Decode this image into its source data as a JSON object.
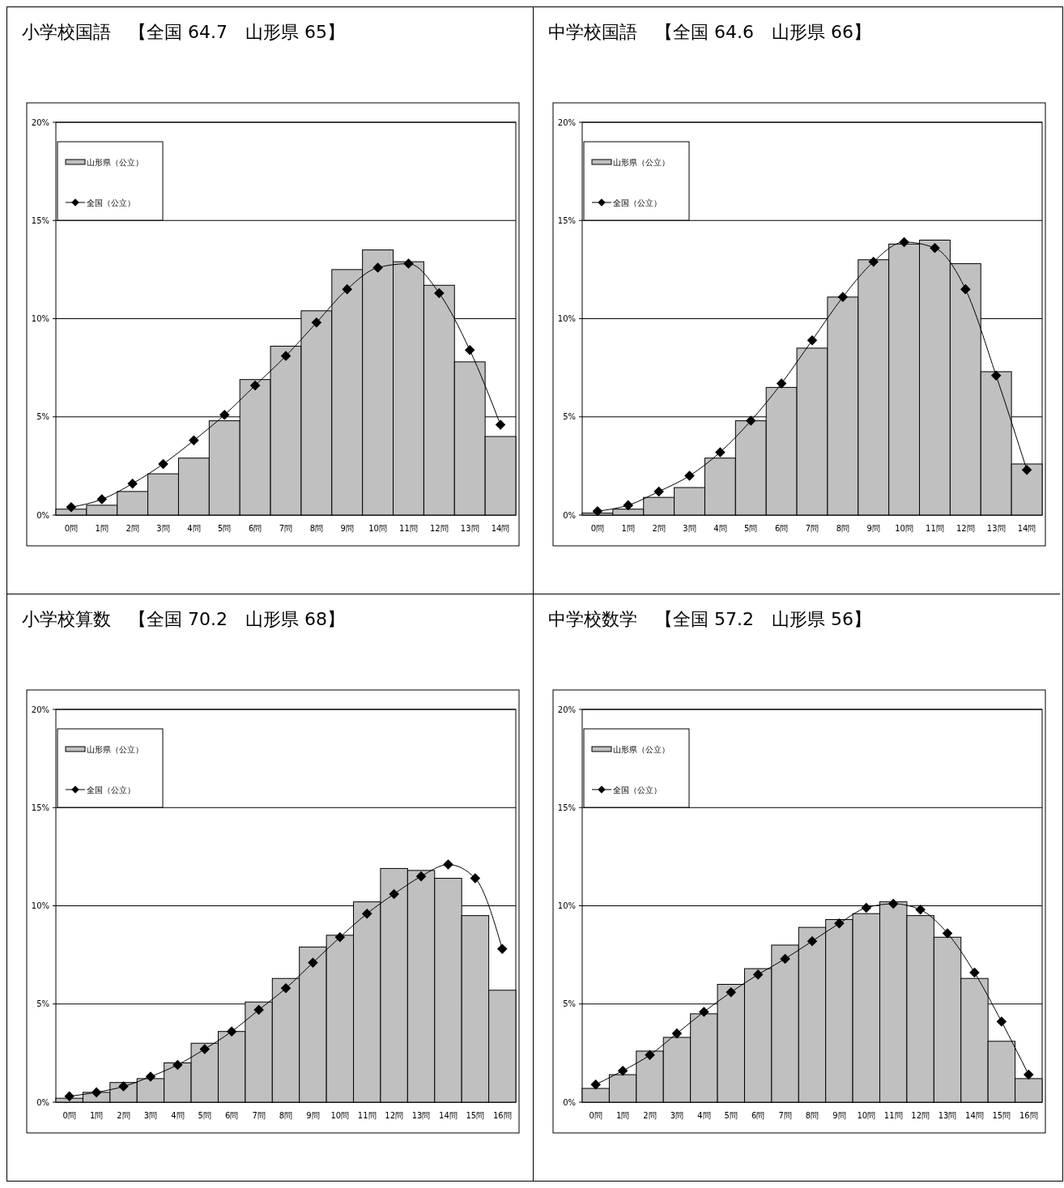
{
  "chart_data": [
    {
      "type": "bar",
      "title": "小学校国語　【全国 64.7　山形県 65】",
      "categories": [
        "0問",
        "1問",
        "2問",
        "3問",
        "4問",
        "5問",
        "6問",
        "7問",
        "8問",
        "9問",
        "10問",
        "11問",
        "12問",
        "13問",
        "14問"
      ],
      "series": [
        {
          "name": "山形県（公立）",
          "color": "#c0c0c0",
          "values": [
            0.3,
            0.5,
            1.2,
            2.1,
            2.9,
            4.8,
            6.9,
            8.6,
            10.4,
            12.5,
            13.5,
            12.9,
            11.7,
            7.8,
            4.0
          ]
        },
        {
          "name": "全国（公立）",
          "type": "line",
          "color": "#000000",
          "marker": "diamond",
          "values": [
            0.4,
            0.8,
            1.6,
            2.6,
            3.8,
            5.1,
            6.6,
            8.1,
            9.8,
            11.5,
            12.6,
            12.8,
            11.3,
            8.4,
            4.6
          ]
        }
      ],
      "ylim": [
        0,
        20
      ],
      "yticks": [
        {
          "value": 0,
          "label": "0%"
        },
        {
          "value": 5,
          "label": "5%"
        },
        {
          "value": 10,
          "label": "10%"
        },
        {
          "value": 15,
          "label": "15%"
        },
        {
          "value": 20,
          "label": "20%"
        }
      ],
      "grid": "y",
      "legend": "top left"
    },
    {
      "type": "bar",
      "title": "中学校国語　【全国 64.6　山形県 66】",
      "categories": [
        "0問",
        "1問",
        "2問",
        "3問",
        "4問",
        "5問",
        "6問",
        "7問",
        "8問",
        "9問",
        "10問",
        "11問",
        "12問",
        "13問",
        "14問"
      ],
      "series": [
        {
          "name": "山形県（公立）",
          "color": "#c0c0c0",
          "values": [
            0.1,
            0.3,
            0.9,
            1.4,
            2.9,
            4.8,
            6.5,
            8.5,
            11.1,
            13.0,
            13.8,
            14.0,
            12.8,
            7.3,
            2.6
          ]
        },
        {
          "name": "全国（公立）",
          "type": "line",
          "color": "#000000",
          "marker": "diamond",
          "values": [
            0.2,
            0.5,
            1.2,
            2.0,
            3.2,
            4.8,
            6.7,
            8.9,
            11.1,
            12.9,
            13.9,
            13.6,
            11.5,
            7.1,
            2.3
          ]
        }
      ],
      "ylim": [
        0,
        20
      ],
      "yticks": [
        {
          "value": 0,
          "label": "0%"
        },
        {
          "value": 5,
          "label": "5%"
        },
        {
          "value": 10,
          "label": "10%"
        },
        {
          "value": 15,
          "label": "15%"
        },
        {
          "value": 20,
          "label": "20%"
        }
      ],
      "grid": "y",
      "legend": "top left"
    },
    {
      "type": "bar",
      "title": "小学校算数　【全国 70.2　山形県 68】",
      "categories": [
        "0問",
        "1問",
        "2問",
        "3問",
        "4問",
        "5問",
        "6問",
        "7問",
        "8問",
        "9問",
        "10問",
        "11問",
        "12問",
        "13問",
        "14問",
        "15問",
        "16問"
      ],
      "series": [
        {
          "name": "山形県（公立）",
          "color": "#c0c0c0",
          "values": [
            0.2,
            0.5,
            1.0,
            1.2,
            2.0,
            3.0,
            3.6,
            5.1,
            6.3,
            7.9,
            8.5,
            10.2,
            11.9,
            11.8,
            11.4,
            9.5,
            5.7
          ]
        },
        {
          "name": "全国（公立）",
          "type": "line",
          "color": "#000000",
          "marker": "diamond",
          "values": [
            0.3,
            0.5,
            0.8,
            1.3,
            1.9,
            2.7,
            3.6,
            4.7,
            5.8,
            7.1,
            8.4,
            9.6,
            10.6,
            11.5,
            12.1,
            11.4,
            7.8
          ]
        }
      ],
      "ylim": [
        0,
        20
      ],
      "yticks": [
        {
          "value": 0,
          "label": "0%"
        },
        {
          "value": 5,
          "label": "5%"
        },
        {
          "value": 10,
          "label": "10%"
        },
        {
          "value": 15,
          "label": "15%"
        },
        {
          "value": 20,
          "label": "20%"
        }
      ],
      "grid": "y",
      "legend": "top left"
    },
    {
      "type": "bar",
      "title": "中学校数学　【全国 57.2　山形県 56】",
      "categories": [
        "0問",
        "1問",
        "2問",
        "3問",
        "4問",
        "5問",
        "6問",
        "7問",
        "8問",
        "9問",
        "10問",
        "11問",
        "12問",
        "13問",
        "14問",
        "15問",
        "16問"
      ],
      "series": [
        {
          "name": "山形県（公立）",
          "color": "#c0c0c0",
          "values": [
            0.7,
            1.4,
            2.6,
            3.3,
            4.5,
            6.0,
            6.8,
            8.0,
            8.9,
            9.3,
            9.6,
            10.2,
            9.5,
            8.4,
            6.3,
            3.1,
            1.2
          ]
        },
        {
          "name": "全国（公立）",
          "type": "line",
          "color": "#000000",
          "marker": "diamond",
          "values": [
            0.9,
            1.6,
            2.4,
            3.5,
            4.6,
            5.6,
            6.5,
            7.3,
            8.2,
            9.1,
            9.9,
            10.1,
            9.8,
            8.6,
            6.6,
            4.1,
            1.4
          ]
        }
      ],
      "ylim": [
        0,
        20
      ],
      "yticks": [
        {
          "value": 0,
          "label": "0%"
        },
        {
          "value": 5,
          "label": "5%"
        },
        {
          "value": 10,
          "label": "10%"
        },
        {
          "value": 15,
          "label": "15%"
        },
        {
          "value": 20,
          "label": "20%"
        }
      ],
      "grid": "y",
      "legend": "top left"
    }
  ]
}
